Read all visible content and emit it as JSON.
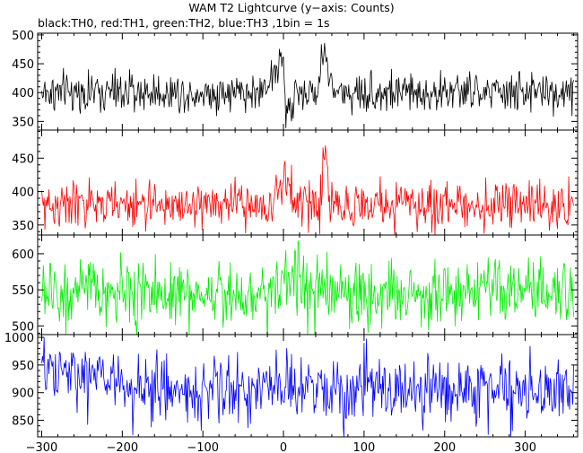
{
  "chart_data": {
    "type": "line",
    "title": "WAM T2 Lightcurve (y−axis: Counts)",
    "subtitle": "black:TH0, red:TH1, green:TH2, blue:TH3 ,1bin = 1s",
    "xlabel": "",
    "ylabel": "",
    "xlim": [
      -305,
      365
    ],
    "x_ticks": [
      -300,
      -200,
      -100,
      0,
      100,
      200,
      300
    ],
    "x_tick_labels": [
      "−300",
      "−200",
      "−100",
      "0",
      "100",
      "200",
      "300"
    ],
    "bin_seconds": 1,
    "panels": [
      {
        "name": "TH0",
        "color": "#000000",
        "ylim": [
          335,
          503
        ],
        "y_ticks": [
          350,
          400,
          450,
          500
        ],
        "y_tick_labels": [
          "350",
          "400",
          "450",
          "500"
        ],
        "baseline": 400,
        "noise_sd": 17,
        "features": [
          {
            "type": "ramp",
            "x_start": -25,
            "x_end": 0,
            "level_start": 410,
            "level_end": 460
          },
          {
            "type": "drop",
            "x_start": 2,
            "x_end": 12,
            "level": 370
          },
          {
            "type": "peak",
            "x_start": 42,
            "x_end": 62,
            "peak_x": 50,
            "peak_level": 480
          }
        ]
      },
      {
        "name": "TH1",
        "color": "#ff0000",
        "ylim": [
          335,
          492
        ],
        "y_ticks": [
          350,
          400,
          450
        ],
        "y_tick_labels": [
          "350",
          "400",
          "450"
        ],
        "baseline": 380,
        "noise_sd": 17,
        "features": [
          {
            "type": "ramp",
            "x_start": -10,
            "x_end": 10,
            "level_start": 390,
            "level_end": 425
          },
          {
            "type": "peak",
            "x_start": 45,
            "x_end": 58,
            "peak_x": 52,
            "peak_level": 470
          }
        ]
      },
      {
        "name": "TH2",
        "color": "#00ee00",
        "ylim": [
          488,
          626
        ],
        "y_ticks": [
          500,
          550,
          600
        ],
        "y_tick_labels": [
          "500",
          "550",
          "600"
        ],
        "baseline": 545,
        "noise_sd": 23,
        "features": [
          {
            "type": "ramp",
            "x_start": -20,
            "x_end": 25,
            "level_start": 555,
            "level_end": 570
          }
        ]
      },
      {
        "name": "TH3",
        "color": "#0000ff",
        "ylim": [
          820,
          1005
        ],
        "y_ticks": [
          850,
          900,
          950,
          1000
        ],
        "y_tick_labels": [
          "850",
          "900",
          "950",
          "1000"
        ],
        "baseline": 905,
        "noise_sd": 30,
        "features": [
          {
            "type": "ramp",
            "x_start": -300,
            "x_end": -200,
            "level_start": 935,
            "level_end": 925
          }
        ]
      }
    ]
  }
}
